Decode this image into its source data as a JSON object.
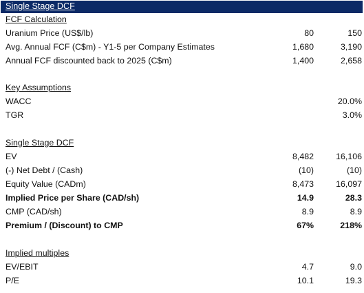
{
  "title": "Single Stage DCF",
  "sections": [
    {
      "heading": "FCF Calculation",
      "rows": [
        {
          "label": "Uranium Price (US$/lb)",
          "v1": "80",
          "v2": "150",
          "bold": false
        },
        {
          "label": "Avg. Annual FCF (C$m) - Y1-5 per Company Estimates",
          "v1": "1,680",
          "v2": "3,190",
          "bold": false
        },
        {
          "label": "Annual FCF discounted back to 2025 (C$m)",
          "v1": "1,400",
          "v2": "2,658",
          "bold": false
        }
      ]
    },
    {
      "heading": "Key Assumptions",
      "rows": [
        {
          "label": "WACC",
          "v1": "",
          "v2": "20.0%",
          "bold": false
        },
        {
          "label": "TGR",
          "v1": "",
          "v2": "3.0%",
          "bold": false
        }
      ]
    },
    {
      "heading": "Single Stage DCF",
      "rows": [
        {
          "label": "EV",
          "v1": "8,482",
          "v2": "16,106",
          "bold": false
        },
        {
          "label": "(-) Net Debt / (Cash)",
          "v1": "(10)",
          "v2": "(10)",
          "bold": false
        },
        {
          "label": "Equity Value (CADm)",
          "v1": "8,473",
          "v2": "16,097",
          "bold": false
        },
        {
          "label": "Implied Price per Share (CAD/sh)",
          "v1": "14.9",
          "v2": "28.3",
          "bold": true
        },
        {
          "label": "CMP (CAD/sh)",
          "v1": "8.9",
          "v2": "8.9",
          "bold": false
        },
        {
          "label": "Premium  / (Discount) to CMP",
          "v1": "67%",
          "v2": "218%",
          "bold": true
        }
      ]
    },
    {
      "heading": "Implied multiples",
      "rows": [
        {
          "label": "EV/EBIT",
          "v1": "4.7",
          "v2": "9.0",
          "bold": false
        },
        {
          "label": "P/E",
          "v1": "10.1",
          "v2": "19.3",
          "bold": false
        }
      ]
    }
  ]
}
